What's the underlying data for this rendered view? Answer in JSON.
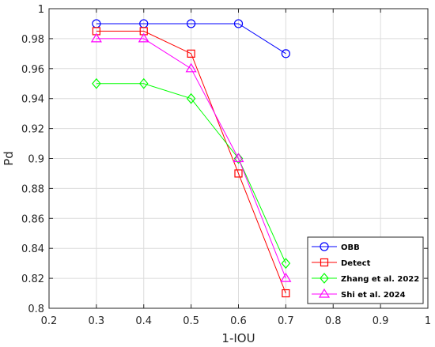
{
  "chart_data": {
    "type": "line",
    "title": "",
    "xlabel": "1-IOU",
    "ylabel": "Pd",
    "xlim": [
      0.2,
      1.0
    ],
    "ylim": [
      0.8,
      1.0
    ],
    "x_ticks": [
      0.2,
      0.3,
      0.4,
      0.5,
      0.6,
      0.7,
      0.8,
      0.9,
      1.0
    ],
    "y_ticks": [
      0.8,
      0.82,
      0.84,
      0.86,
      0.88,
      0.9,
      0.92,
      0.94,
      0.96,
      0.98,
      1.0
    ],
    "x_tick_labels": [
      "0.2",
      "0.3",
      "0.4",
      "0.5",
      "0.6",
      "0.7",
      "0.8",
      "0.9",
      "1"
    ],
    "y_tick_labels": [
      "0.8",
      "0.82",
      "0.84",
      "0.86",
      "0.88",
      "0.9",
      "0.92",
      "0.94",
      "0.96",
      "0.98",
      "1"
    ],
    "grid": true,
    "legend_position": "bottom-right",
    "x": [
      0.3,
      0.4,
      0.5,
      0.6,
      0.7
    ],
    "series": [
      {
        "name": "OBB",
        "values": [
          0.99,
          0.99,
          0.99,
          0.99,
          0.97
        ],
        "color": "#0000ff",
        "marker": "circle"
      },
      {
        "name": "Detect",
        "values": [
          0.985,
          0.985,
          0.97,
          0.89,
          0.81
        ],
        "color": "#ff0000",
        "marker": "square"
      },
      {
        "name": "Zhang et al. 2022",
        "values": [
          0.95,
          0.95,
          0.94,
          0.9,
          0.83
        ],
        "color": "#00ff00",
        "marker": "diamond"
      },
      {
        "name": "Shi et al. 2024",
        "values": [
          0.98,
          0.98,
          0.96,
          0.9,
          0.82
        ],
        "color": "#ff00ff",
        "marker": "triangle"
      }
    ]
  }
}
